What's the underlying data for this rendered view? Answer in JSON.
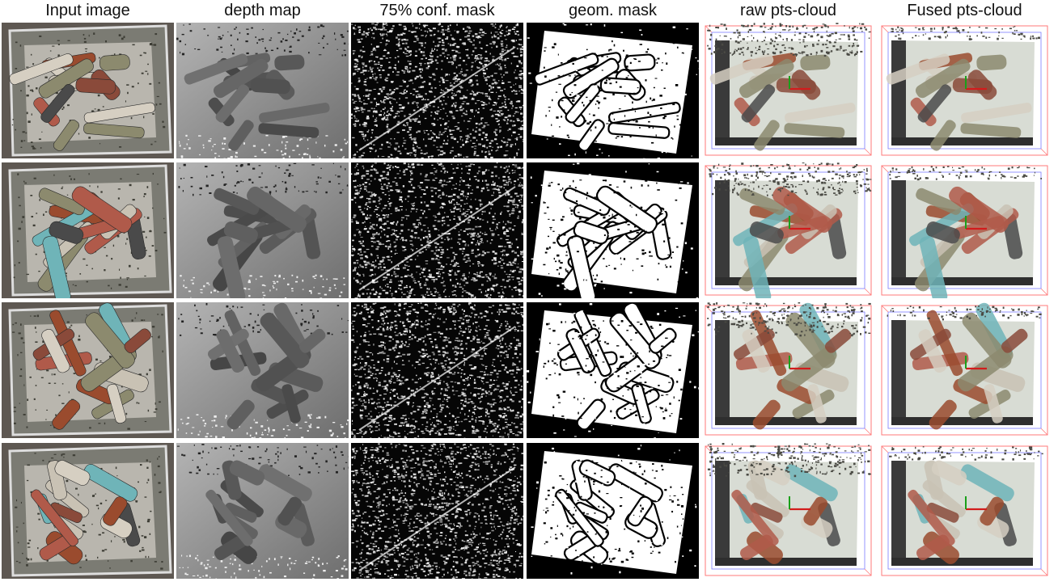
{
  "figure": {
    "columns": [
      {
        "key": "input",
        "header": "Input image",
        "name": "input-image"
      },
      {
        "key": "depth",
        "header": "depth map",
        "name": "depth-map"
      },
      {
        "key": "conf",
        "header": "75% conf. mask",
        "name": "confidence-mask"
      },
      {
        "key": "geom",
        "header": "geom. mask",
        "name": "geometric-mask"
      },
      {
        "key": "raw",
        "header": "raw pts-cloud",
        "name": "raw-point-cloud"
      },
      {
        "key": "fused",
        "header": "Fused pts-cloud",
        "name": "fused-point-cloud"
      }
    ],
    "row_count": 4
  },
  "palette": {
    "pipe_colors": [
      "#8a4a3a",
      "#6fb4b8",
      "#b05a4a",
      "#c9c2b4",
      "#8c8a6e",
      "#4a4a4a",
      "#d6cfc2",
      "#9a4b2e"
    ],
    "wall": "#7b7b73",
    "floor": "#6b645f",
    "cloud_bg": "#d8dcd4",
    "axis_red": "#d21c1c",
    "axis_green": "#1aa01a",
    "bbox_red": "#ff7a7a",
    "bbox_blue": "#7a7aff"
  }
}
